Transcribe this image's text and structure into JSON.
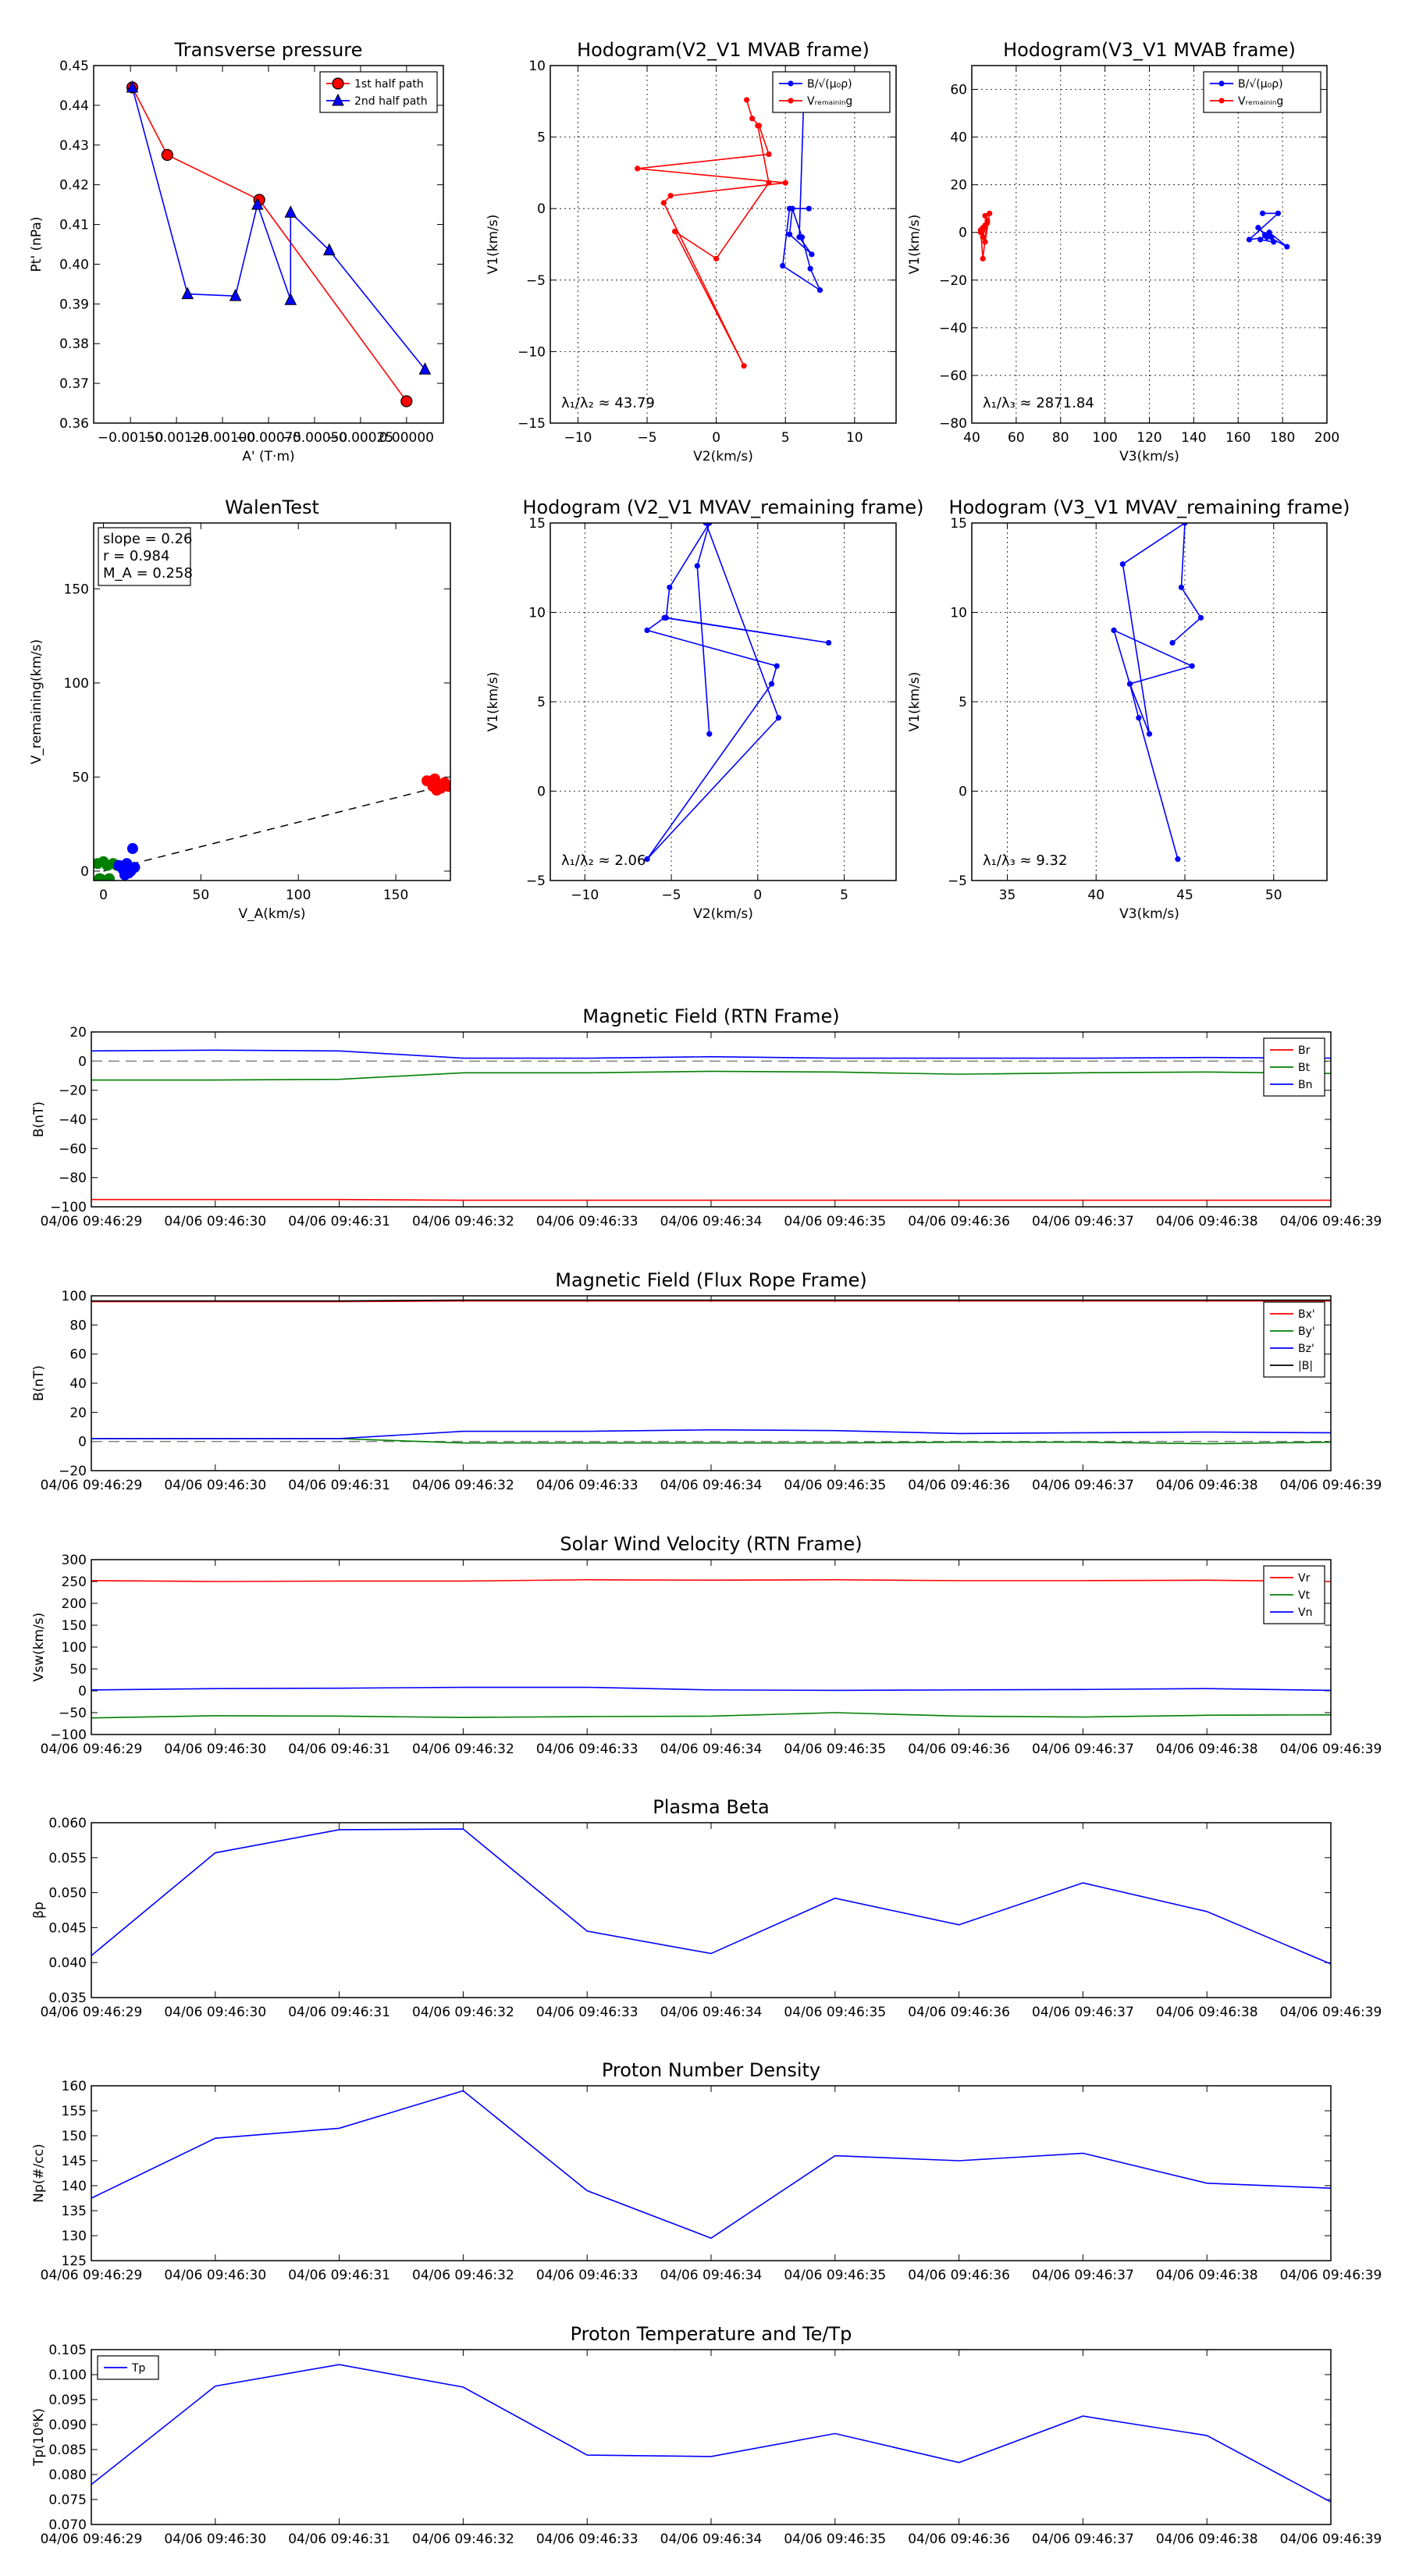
{
  "colors": {
    "red": "#ff0000",
    "blue": "#0000ff",
    "green": "#008000",
    "black": "#000000",
    "dash": "#808080"
  },
  "timeticks": [
    "04/06 09:46:29",
    "04/06 09:46:30",
    "04/06 09:46:31",
    "04/06 09:46:32",
    "04/06 09:46:33",
    "04/06 09:46:34",
    "04/06 09:46:35",
    "04/06 09:46:36",
    "04/06 09:46:37",
    "04/06 09:46:38",
    "04/06 09:46:39"
  ],
  "chart_data": [
    {
      "id": "transverse-pressure",
      "type": "scatter",
      "title": "Transverse pressure",
      "xlabel": "A' (T·m)",
      "ylabel": "Pt' (nPa)",
      "xlim": [
        -0.0017,
        0.0002
      ],
      "ylim": [
        0.36,
        0.45
      ],
      "xticks": [
        -0.0015,
        -0.00125,
        -0.001,
        -0.00075,
        -0.0005,
        -0.00025,
        0.0
      ],
      "xticklabels": [
        "−0.00150",
        "−0.00125",
        "−0.00100",
        "−0.00075",
        "−0.00050",
        "−0.00025",
        "0.00000"
      ],
      "yticks": [
        0.36,
        0.37,
        0.38,
        0.39,
        0.4,
        0.41,
        0.42,
        0.43,
        0.44,
        0.45
      ],
      "yticklabels": [
        "0.36",
        "0.37",
        "0.38",
        "0.39",
        "0.40",
        "0.41",
        "0.42",
        "0.43",
        "0.44",
        "0.45"
      ],
      "grid": false,
      "legend": "top-right",
      "series": [
        {
          "name": "1st half path",
          "color": "red",
          "marker": "circle",
          "x": [
            -0.00149,
            -0.0013,
            -0.0008,
            0.0
          ],
          "y": [
            0.4445,
            0.4275,
            0.4162,
            0.3655
          ]
        },
        {
          "name": "2nd half path",
          "color": "blue",
          "marker": "triangle",
          "x": [
            -0.00149,
            -0.00119,
            -0.00093,
            -0.00081,
            -0.00063,
            -0.00063,
            -0.00042,
            0.0001
          ],
          "y": [
            0.4445,
            0.3925,
            0.392,
            0.415,
            0.391,
            0.413,
            0.4035,
            0.3735
          ]
        }
      ]
    },
    {
      "id": "hodogram-v2v1-mvab",
      "type": "line",
      "title": "Hodogram(V2_V1 MVAB frame)",
      "xlabel": "V2(km/s)",
      "ylabel": "V1(km/s)",
      "xlim": [
        -12,
        13
      ],
      "ylim": [
        -15,
        10
      ],
      "xticks": [
        -10,
        -5,
        0,
        5,
        10
      ],
      "xticklabels": [
        "−10",
        "−5",
        "0",
        "5",
        "10"
      ],
      "yticks": [
        -15,
        -10,
        -5,
        0,
        5,
        10
      ],
      "yticklabels": [
        "−15",
        "−10",
        "−5",
        "0",
        "5",
        "10"
      ],
      "grid": true,
      "legend": "top-right",
      "annotation": "λ₁/λ₂ ≈ 43.79",
      "series": [
        {
          "name": "B/√(μ₀ρ)",
          "color": "blue",
          "marker": "dot",
          "x": [
            6.2,
            5.9,
            6.3,
            6.0,
            6.9,
            5.3,
            5.5,
            6.2,
            6.8,
            7.5,
            4.8,
            5.3,
            6.7
          ],
          "y": [
            8.2,
            7.2,
            6.9,
            -2.0,
            -3.2,
            -1.8,
            0.0,
            -2.0,
            -4.2,
            -5.7,
            -4.0,
            0.0,
            0.0
          ]
        },
        {
          "name": "Vᵣₑₘₐᵢₙᵢₙg",
          "color": "red",
          "marker": "dot",
          "x": [
            2.2,
            2.6,
            3.1,
            3.8,
            -5.7,
            5.0,
            -3.3,
            -3.8,
            2.0,
            -3.0,
            0.0,
            3.8,
            3.0
          ],
          "y": [
            7.6,
            6.3,
            5.8,
            3.8,
            2.8,
            1.8,
            0.9,
            0.4,
            -11.0,
            -1.6,
            -3.5,
            1.8,
            5.8
          ]
        }
      ]
    },
    {
      "id": "hodogram-v3v1-mvab",
      "type": "scatter",
      "title": "Hodogram(V3_V1 MVAB frame)",
      "xlabel": "V3(km/s)",
      "ylabel": "V1(km/s)",
      "xlim": [
        40,
        200
      ],
      "ylim": [
        -80,
        70
      ],
      "xticks": [
        40,
        60,
        80,
        100,
        120,
        140,
        160,
        180,
        200
      ],
      "xticklabels": [
        "40",
        "60",
        "80",
        "100",
        "120",
        "140",
        "160",
        "180",
        "200"
      ],
      "yticks": [
        -80,
        -60,
        -40,
        -20,
        0,
        20,
        40,
        60
      ],
      "yticklabels": [
        "−80",
        "−60",
        "−40",
        "−20",
        "0",
        "20",
        "40",
        "60"
      ],
      "grid": true,
      "legend": "top-right",
      "annotation": "λ₁/λ₃ ≈ 2871.84",
      "series": [
        {
          "name": "B/√(μ₀ρ)",
          "color": "blue",
          "marker": "dot",
          "x": [
            171,
            178,
            165,
            173,
            169,
            176,
            170,
            174,
            182,
            172,
            175
          ],
          "y": [
            8,
            8,
            -3,
            -2,
            2,
            -4,
            -3,
            0,
            -6,
            -1,
            -2
          ]
        },
        {
          "name": "Vᵣₑₘₐᵢₙᵢₙg",
          "color": "red",
          "marker": "dot",
          "x": [
            46,
            47,
            45,
            44,
            46,
            45,
            47,
            45,
            44,
            46,
            48
          ],
          "y": [
            7,
            4,
            2,
            0,
            3,
            -2,
            5,
            -11,
            1,
            -4,
            8
          ]
        }
      ]
    },
    {
      "id": "walen-test",
      "type": "scatter",
      "title": "WalenTest",
      "xlabel": "V_A(km/s)",
      "ylabel": "V_remaining(km/s)",
      "xlim": [
        -5,
        178
      ],
      "ylim": [
        -5,
        185
      ],
      "xticks": [
        0,
        50,
        100,
        150
      ],
      "xticklabels": [
        "0",
        "50",
        "100",
        "150"
      ],
      "yticks": [
        0,
        50,
        100,
        150
      ],
      "yticklabels": [
        "0",
        "50",
        "100",
        "150"
      ],
      "grid": false,
      "legend": "none",
      "annotations": [
        "slope = 0.26",
        "r = 0.984",
        "M_A = 0.258"
      ],
      "fit": {
        "slope": 0.26,
        "x": [
          0,
          178
        ]
      },
      "series": [
        {
          "name": "",
          "color": "red",
          "x": [
            166,
            169,
            170,
            172,
            173,
            175,
            177,
            171,
            174
          ],
          "y": [
            48,
            45,
            49,
            46,
            44,
            47,
            45,
            43,
            46
          ]
        },
        {
          "name": "",
          "color": "green",
          "x": [
            -3,
            0,
            2,
            5,
            7,
            -2,
            1,
            3
          ],
          "y": [
            4,
            5,
            3,
            4,
            3,
            -4,
            -5,
            -4
          ]
        },
        {
          "name": "",
          "color": "blue",
          "x": [
            8,
            10,
            12,
            13,
            15,
            14,
            16,
            11
          ],
          "y": [
            3,
            1,
            4,
            -1,
            12,
            0,
            2,
            -2
          ]
        }
      ]
    },
    {
      "id": "hodogram-v2v1-mvav",
      "type": "line",
      "title": "Hodogram (V2_V1 MVAV_remaining frame)",
      "xlabel": "V2(km/s)",
      "ylabel": "V1(km/s)",
      "xlim": [
        -12,
        8
      ],
      "ylim": [
        -5,
        15
      ],
      "xticks": [
        -10,
        -5,
        0,
        5
      ],
      "xticklabels": [
        "−10",
        "−5",
        "0",
        "5"
      ],
      "yticks": [
        -5,
        0,
        5,
        10,
        15
      ],
      "yticklabels": [
        "−5",
        "0",
        "5",
        "10",
        "15"
      ],
      "grid": true,
      "legend": "none",
      "annotation": "λ₁/λ₂ ≈ 2.06",
      "series": [
        {
          "name": "",
          "color": "blue",
          "marker": "dot",
          "x": [
            -2.8,
            -3.5,
            -2.8,
            -5.1,
            -5.3,
            4.1,
            -5.4,
            -6.4,
            1.1,
            0.8,
            -6.4,
            1.2,
            -3.0
          ],
          "y": [
            3.2,
            12.6,
            15.0,
            11.4,
            9.7,
            8.3,
            9.7,
            9.0,
            7.0,
            6.0,
            -3.8,
            4.1,
            15.0
          ]
        }
      ]
    },
    {
      "id": "hodogram-v3v1-mvav",
      "type": "line",
      "title": "Hodogram (V3_V1 MVAV_remaining frame)",
      "xlabel": "V3(km/s)",
      "ylabel": "V1(km/s)",
      "xlim": [
        33,
        53
      ],
      "ylim": [
        -5,
        15
      ],
      "xticks": [
        35,
        40,
        45,
        50
      ],
      "xticklabels": [
        "35",
        "40",
        "45",
        "50"
      ],
      "yticks": [
        -5,
        0,
        5,
        10,
        15
      ],
      "yticklabels": [
        "−5",
        "0",
        "5",
        "10",
        "15"
      ],
      "grid": true,
      "legend": "none",
      "annotation": "λ₁/λ₃ ≈ 9.32",
      "series": [
        {
          "name": "",
          "color": "blue",
          "marker": "dot",
          "x": [
            44.6,
            42.4,
            41.9,
            45.4,
            41.0,
            41.9,
            43.0,
            41.5,
            45.0,
            44.8,
            45.9,
            44.3
          ],
          "y": [
            -3.8,
            4.1,
            6.0,
            7.0,
            9.0,
            6.0,
            3.2,
            12.7,
            15.0,
            11.4,
            9.7,
            8.3
          ]
        }
      ]
    },
    {
      "id": "mag-rtn",
      "type": "line",
      "title": "Magnetic Field (RTN Frame)",
      "xlabel": "",
      "ylabel": "B(nT)",
      "xlim": [
        0,
        10
      ],
      "ylim": [
        -100,
        20
      ],
      "yticks": [
        -100,
        -80,
        -60,
        -40,
        -20,
        0,
        20
      ],
      "yticklabels": [
        "−100",
        "−80",
        "−60",
        "−40",
        "−20",
        "0",
        "20"
      ],
      "grid": false,
      "legend": "top-right",
      "zero_dash": true,
      "series": [
        {
          "name": "Br",
          "color": "red",
          "values": [
            -95,
            -95,
            -95,
            -95.5,
            -95.5,
            -95.5,
            -95.5,
            -95.5,
            -95.5,
            -95.5,
            -95.5
          ]
        },
        {
          "name": "Bt",
          "color": "green",
          "values": [
            -13,
            -13,
            -12.5,
            -8,
            -8,
            -7,
            -7.5,
            -9,
            -8,
            -7.5,
            -8.5
          ]
        },
        {
          "name": "Bn",
          "color": "blue",
          "values": [
            7,
            7.5,
            7,
            2,
            2,
            3,
            2,
            2,
            2,
            2.5,
            2
          ]
        }
      ]
    },
    {
      "id": "mag-fluxrope",
      "type": "line",
      "title": "Magnetic Field (Flux Rope Frame)",
      "xlabel": "",
      "ylabel": "B(nT)",
      "xlim": [
        0,
        10
      ],
      "ylim": [
        -20,
        100
      ],
      "yticks": [
        -20,
        0,
        20,
        40,
        60,
        80,
        100
      ],
      "yticklabels": [
        "−20",
        "0",
        "20",
        "40",
        "60",
        "80",
        "100"
      ],
      "grid": false,
      "legend": "top-right",
      "zero_dash": true,
      "series": [
        {
          "name": "Bx'",
          "color": "red",
          "values": [
            96,
            96,
            96,
            96.5,
            96.5,
            96.5,
            96.5,
            96.5,
            96.5,
            96.5,
            96.5
          ]
        },
        {
          "name": "By'",
          "color": "green",
          "values": [
            2,
            2,
            2,
            -1,
            -1,
            -1,
            -1,
            -0.5,
            -0.5,
            -1.5,
            -0.5
          ]
        },
        {
          "name": "Bz'",
          "color": "blue",
          "values": [
            2,
            2,
            2,
            7,
            7,
            8,
            7.5,
            5.5,
            6,
            6.5,
            6
          ]
        },
        {
          "name": "|B|",
          "color": "black",
          "values": [
            96.5,
            96.5,
            96.5,
            97,
            97,
            97,
            97,
            97,
            97,
            97,
            97
          ]
        }
      ]
    },
    {
      "id": "sw-velocity",
      "type": "line",
      "title": "Solar Wind Velocity (RTN Frame)",
      "xlabel": "",
      "ylabel": "Vsw(km/s)",
      "xlim": [
        0,
        10
      ],
      "ylim": [
        -100,
        300
      ],
      "yticks": [
        -100,
        -50,
        0,
        50,
        100,
        150,
        200,
        250,
        300
      ],
      "yticklabels": [
        "−100",
        "−50",
        "0",
        "50",
        "100",
        "150",
        "200",
        "250",
        "300"
      ],
      "grid": false,
      "legend": "top-right",
      "series": [
        {
          "name": "Vr",
          "color": "red",
          "values": [
            252,
            250,
            251,
            251,
            254,
            253,
            254,
            252,
            252,
            253,
            250
          ]
        },
        {
          "name": "Vt",
          "color": "green",
          "values": [
            -62,
            -57,
            -58,
            -61,
            -59,
            -58,
            -50,
            -58,
            -60,
            -56,
            -55
          ]
        },
        {
          "name": "Vn",
          "color": "blue",
          "values": [
            2,
            5,
            6,
            8,
            8,
            2,
            1,
            2,
            3,
            5,
            1
          ]
        }
      ]
    },
    {
      "id": "plasma-beta",
      "type": "line",
      "title": "Plasma Beta",
      "xlabel": "",
      "ylabel": "βp",
      "xlim": [
        0,
        10
      ],
      "ylim": [
        0.035,
        0.06
      ],
      "yticks": [
        0.035,
        0.04,
        0.045,
        0.05,
        0.055,
        0.06
      ],
      "yticklabels": [
        "0.035",
        "0.040",
        "0.045",
        "0.050",
        "0.055",
        "0.060"
      ],
      "grid": false,
      "legend": "none",
      "series": [
        {
          "name": "",
          "color": "blue",
          "values": [
            0.041,
            0.0557,
            0.059,
            0.0591,
            0.0445,
            0.0413,
            0.0492,
            0.0454,
            0.0514,
            0.0473,
            0.0398
          ]
        }
      ]
    },
    {
      "id": "proton-density",
      "type": "line",
      "title": "Proton Number Density",
      "xlabel": "",
      "ylabel": "Np(#/cc)",
      "xlim": [
        0,
        10
      ],
      "ylim": [
        125,
        160
      ],
      "yticks": [
        125,
        130,
        135,
        140,
        145,
        150,
        155,
        160
      ],
      "yticklabels": [
        "125",
        "130",
        "135",
        "140",
        "145",
        "150",
        "155",
        "160"
      ],
      "grid": false,
      "legend": "none",
      "series": [
        {
          "name": "",
          "color": "blue",
          "values": [
            137.5,
            149.5,
            151.5,
            159,
            139,
            129.5,
            146,
            145,
            146.5,
            140.5,
            139.5
          ]
        }
      ]
    },
    {
      "id": "proton-temperature",
      "type": "line",
      "title": "Proton Temperature and Te/Tp",
      "xlabel": "",
      "ylabel": "Tp(10⁶K)",
      "xlim": [
        0,
        10
      ],
      "ylim": [
        0.07,
        0.105
      ],
      "yticks": [
        0.07,
        0.075,
        0.08,
        0.085,
        0.09,
        0.095,
        0.1,
        0.105
      ],
      "yticklabels": [
        "0.070",
        "0.075",
        "0.080",
        "0.085",
        "0.090",
        "0.095",
        "0.100",
        "0.105"
      ],
      "grid": false,
      "legend": "top-left",
      "series": [
        {
          "name": "Tp",
          "color": "blue",
          "values": [
            0.078,
            0.0977,
            0.102,
            0.0975,
            0.0839,
            0.0836,
            0.0882,
            0.0824,
            0.0917,
            0.0878,
            0.0745
          ]
        }
      ]
    }
  ]
}
